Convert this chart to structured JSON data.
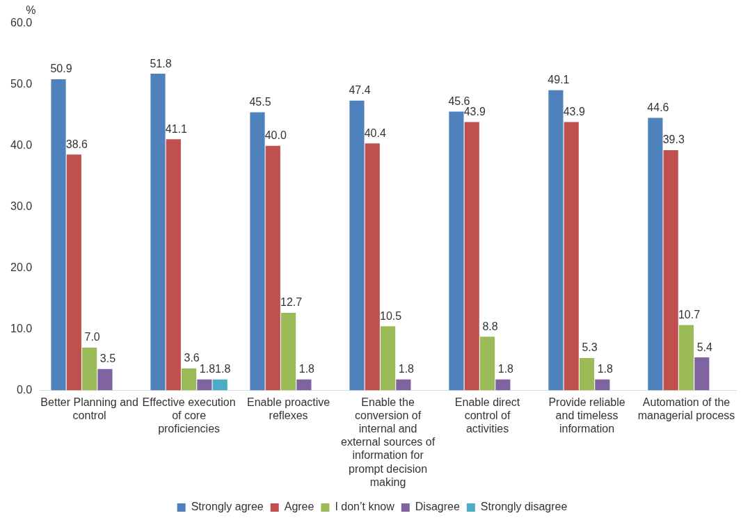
{
  "chart_data": {
    "type": "bar",
    "ylabel": "%",
    "categories": [
      "Better Planning and control",
      "Effective execution of core proficiencies",
      "Enable proactive reflexes",
      "Enable the conversion of internal and external sources of information for prompt decision making",
      "Enable direct control of activities",
      "Provide reliable and timeless information",
      "Automation of the managerial process"
    ],
    "series": [
      {
        "name": "Strongly agree",
        "color": "#4f81bd",
        "values": [
          50.9,
          51.8,
          45.5,
          47.4,
          45.6,
          49.1,
          44.6
        ],
        "value_labels": [
          "50.9",
          "51.8",
          "45.5",
          "47.4",
          "45.6",
          "49.1",
          "44.6"
        ]
      },
      {
        "name": "Agree",
        "color": "#c0504d",
        "values": [
          38.6,
          41.1,
          40.0,
          40.4,
          43.9,
          43.9,
          39.3
        ],
        "value_labels": [
          "38.6",
          "41.1",
          "40.0",
          "40.4",
          "43.9",
          "43.9",
          "39.3"
        ]
      },
      {
        "name": "I don’t know",
        "color": "#9bbb59",
        "values": [
          7.0,
          3.6,
          12.7,
          10.5,
          8.8,
          5.3,
          10.7
        ],
        "value_labels": [
          "7.0",
          "3.6",
          "12.7",
          "10.5",
          "8.8",
          "5.3",
          "10.7"
        ]
      },
      {
        "name": "Disagree",
        "color": "#8064a2",
        "values": [
          3.5,
          1.8,
          1.8,
          1.8,
          1.8,
          1.8,
          5.4
        ],
        "value_labels": [
          "3.5",
          "1.8",
          "1.8",
          "1.8",
          "1.8",
          "1.8",
          "5.4"
        ]
      },
      {
        "name": "Strongly disagree",
        "color": "#4bacc6",
        "values": [
          null,
          1.8,
          null,
          null,
          null,
          null,
          null
        ],
        "value_labels": [
          null,
          "1.8",
          null,
          null,
          null,
          null,
          null
        ]
      }
    ],
    "ylim": [
      0,
      60
    ],
    "yticks": [
      {
        "value": 0,
        "label": "0.0"
      },
      {
        "value": 10,
        "label": "10.0"
      },
      {
        "value": 20,
        "label": "20.0"
      },
      {
        "value": 30,
        "label": "30.0"
      },
      {
        "value": 40,
        "label": "40.0"
      },
      {
        "value": 50,
        "label": "50.0"
      },
      {
        "value": 60,
        "label": "60.0"
      }
    ],
    "grid": false,
    "legend": "bottom"
  }
}
